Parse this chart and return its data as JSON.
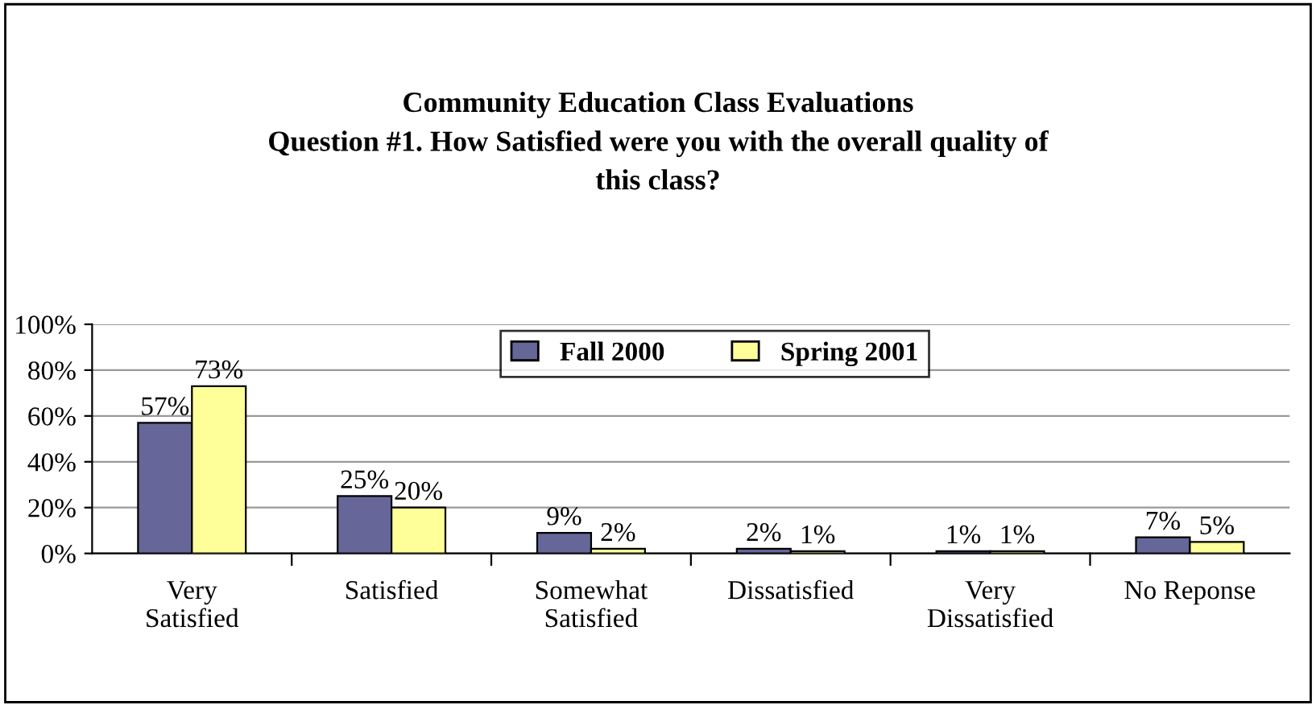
{
  "chart_data": {
    "type": "bar",
    "title": "Community Education Class Evaluations\nQuestion #1. How Satisfied were you with the overall quality of\nthis class?",
    "categories": [
      "Very\nSatisfied",
      "Satisfied",
      "Somewhat\nSatisfied",
      "Dissatisfied",
      "Very\nDissatisfied",
      "No Reponse"
    ],
    "series": [
      {
        "name": "Fall 2000",
        "color": "#666699",
        "values": [
          57,
          25,
          9,
          2,
          1,
          7
        ],
        "value_labels": [
          "57%",
          "25%",
          "9%",
          "2%",
          "1%",
          "7%"
        ]
      },
      {
        "name": "Spring 2001",
        "color": "#ffff99",
        "values": [
          73,
          20,
          2,
          1,
          1,
          5
        ],
        "value_labels": [
          "73%",
          "20%",
          "2%",
          "1%",
          "1%",
          "5%"
        ]
      }
    ],
    "ylim": [
      0,
      100
    ],
    "yticks": [
      {
        "value": 0,
        "label": "0%"
      },
      {
        "value": 20,
        "label": "20%"
      },
      {
        "value": 40,
        "label": "40%"
      },
      {
        "value": 60,
        "label": "60%"
      },
      {
        "value": 80,
        "label": "80%"
      },
      {
        "value": 100,
        "label": "100%"
      }
    ],
    "grid": "y",
    "legend": "top"
  }
}
